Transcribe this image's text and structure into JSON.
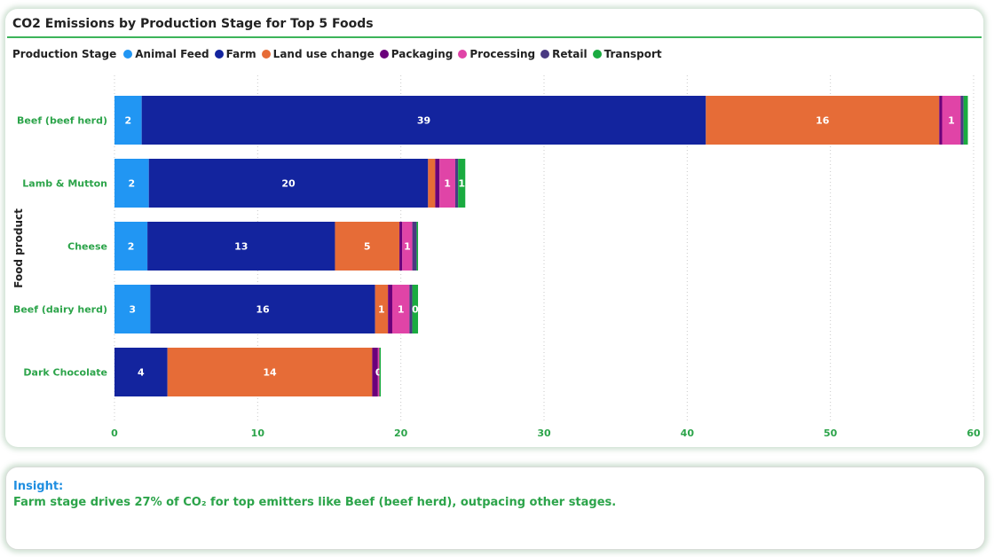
{
  "chart_data": {
    "type": "bar",
    "orientation": "horizontal",
    "stacked": true,
    "title": "CO2 Emissions by Production Stage for Top 5 Foods",
    "legend_title": "Production Stage",
    "legend_position": "top-left",
    "ylabel": "Food product",
    "xlabel": "",
    "xlim": [
      0,
      60
    ],
    "xticks": [
      0,
      10,
      20,
      30,
      40,
      50,
      60
    ],
    "grid": "vertical-dotted",
    "categories": [
      "Beef (beef herd)",
      "Lamb & Mutton",
      "Cheese",
      "Beef (dairy herd)",
      "Dark Chocolate"
    ],
    "series": [
      {
        "name": "Animal Feed",
        "color": "#2196f3",
        "values": [
          1.9,
          2.4,
          2.3,
          2.5,
          0
        ],
        "labels": [
          "2",
          "2",
          "2",
          "3",
          ""
        ]
      },
      {
        "name": "Farm",
        "color": "#13249e",
        "values": [
          39.4,
          19.5,
          13.1,
          15.7,
          3.7
        ],
        "labels": [
          "39",
          "20",
          "13",
          "16",
          "4"
        ]
      },
      {
        "name": "Land use change",
        "color": "#e66c37",
        "values": [
          16.3,
          0.5,
          4.5,
          0.9,
          14.3
        ],
        "labels": [
          "16",
          "",
          "5",
          "1",
          "14"
        ]
      },
      {
        "name": "Packaging",
        "color": "#6b007b",
        "values": [
          0.2,
          0.3,
          0.2,
          0.3,
          0.4
        ],
        "labels": [
          "",
          "",
          "",
          "",
          ""
        ]
      },
      {
        "name": "Processing",
        "color": "#e044a7",
        "values": [
          1.3,
          1.1,
          0.7,
          1.2,
          0.1
        ],
        "labels": [
          "1",
          "1",
          "1",
          "1",
          "0"
        ]
      },
      {
        "name": "Retail",
        "color": "#4a3a82",
        "values": [
          0.2,
          0.2,
          0.3,
          0.2,
          0
        ],
        "labels": [
          "",
          "",
          "",
          "",
          ""
        ]
      },
      {
        "name": "Transport",
        "color": "#1aab40",
        "values": [
          0.3,
          0.5,
          0.1,
          0.4,
          0.1
        ],
        "labels": [
          "",
          "1",
          "",
          "0",
          ""
        ]
      }
    ]
  },
  "insight": {
    "heading": "Insight:",
    "text": "Farm stage drives 27% of CO₂ for top emitters like Beef (beef herd), outpacing other stages."
  }
}
